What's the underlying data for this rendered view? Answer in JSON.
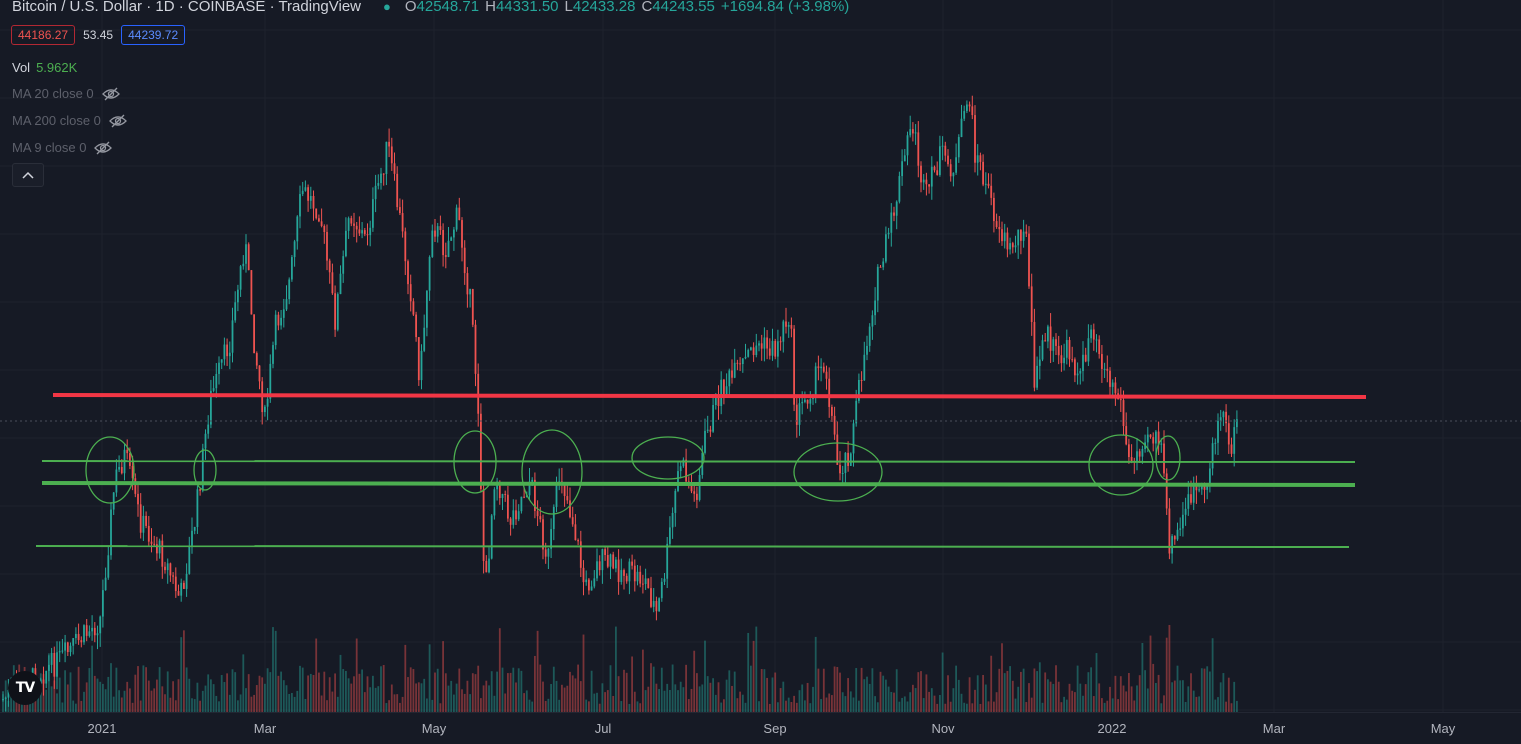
{
  "header": {
    "symbol_title": "Bitcoin / U.S. Dollar · 1D · COINBASE · TradingView",
    "ohlc": {
      "o_label": "O",
      "o": "42548.71",
      "h_label": "H",
      "h": "44331.50",
      "l_label": "L",
      "l": "42433.28",
      "c_label": "C",
      "c": "44243.55",
      "change": "+1694.84 (+3.98%)"
    }
  },
  "price_boxes": {
    "bid": "44186.27",
    "spread": "53.45",
    "ask": "44239.72"
  },
  "volume": {
    "label": "Vol",
    "value": "5.962K"
  },
  "indicators": [
    {
      "label": "MA 20 close 0",
      "icon": "eye-hidden-icon"
    },
    {
      "label": "MA 200 close 0",
      "icon": "eye-hidden-icon"
    },
    {
      "label": "MA 9 close 0",
      "icon": "eye-hidden-icon"
    }
  ],
  "collapse_icon": "chevron-up-icon",
  "logo": "TV",
  "time_axis": [
    "2021",
    "Mar",
    "May",
    "Jul",
    "Sep",
    "Nov",
    "2022",
    "Mar",
    "May"
  ],
  "colors": {
    "up": "#26a69a",
    "down": "#ef5350",
    "resistance": "#f23645",
    "support": "#4caf50",
    "background": "#161a25"
  },
  "chart_data": {
    "type": "candlestick",
    "series": "BTC/USD daily",
    "resistance_level_count": 1,
    "support_level_count": 3,
    "visible_period": [
      "2020-12",
      "2022-02"
    ]
  }
}
